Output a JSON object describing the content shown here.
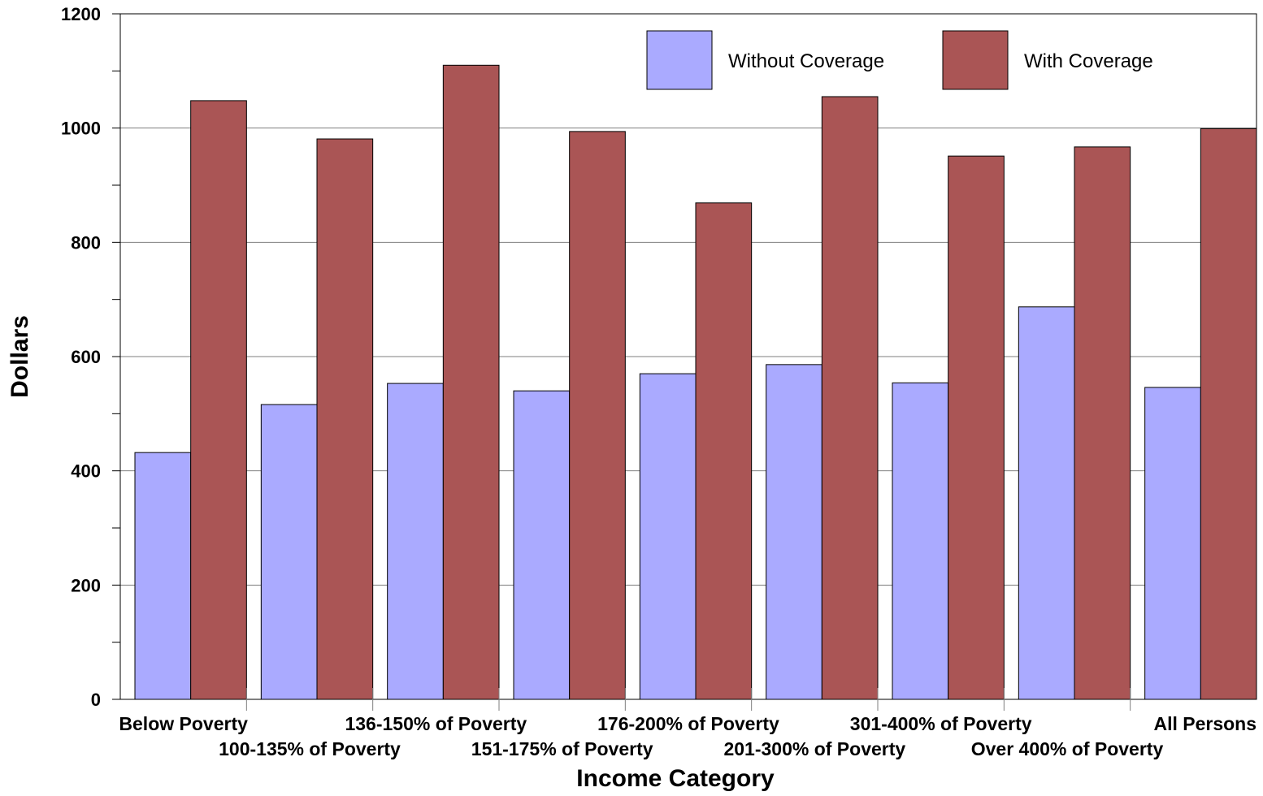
{
  "chart_data": {
    "type": "bar",
    "xlabel": "Income Category",
    "ylabel": "Dollars",
    "ylim": [
      0,
      1200
    ],
    "y_ticks": [
      0,
      200,
      400,
      600,
      800,
      1000,
      1200
    ],
    "grid": true,
    "legend_position": "top-right",
    "categories": [
      "Below Poverty",
      "100-135% of Poverty",
      "136-150% of Poverty",
      "151-175% of Poverty",
      "176-200% of Poverty",
      "201-300% of Poverty",
      "301-400% of Poverty",
      "Over 400% of Poverty",
      "All Persons"
    ],
    "series": [
      {
        "name": "Without Coverage",
        "color": "#aaaaff",
        "values": [
          432,
          516,
          553,
          540,
          570,
          586,
          554,
          687,
          546
        ]
      },
      {
        "name": "With Coverage",
        "color": "#aa5555",
        "values": [
          1048,
          981,
          1110,
          994,
          869,
          1055,
          951,
          967,
          999
        ]
      }
    ]
  }
}
